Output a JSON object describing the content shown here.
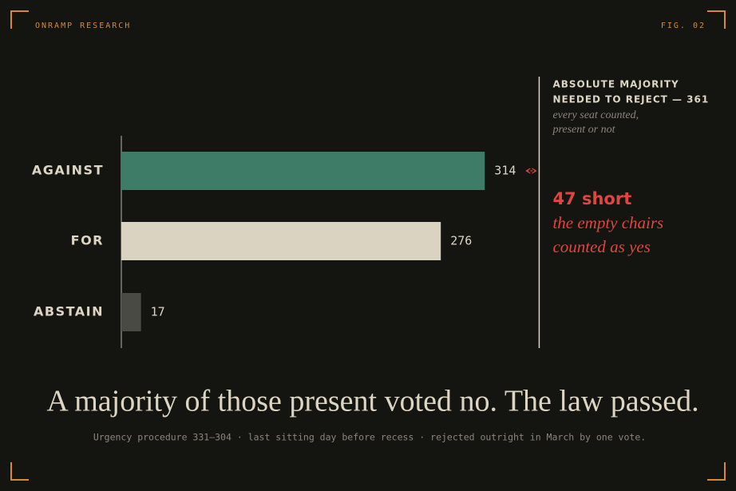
{
  "header": {
    "brand": "ONRAMP RESEARCH",
    "figure": "FIG. 02"
  },
  "chart_data": {
    "type": "bar",
    "orientation": "horizontal",
    "categories": [
      "AGAINST",
      "FOR",
      "ABSTAIN"
    ],
    "values": [
      314,
      276,
      17
    ],
    "colors": [
      "#3f7c67",
      "#dbd3c1",
      "#4a4a45"
    ],
    "xlim": [
      0,
      500
    ],
    "reference": {
      "value": 361,
      "label": [
        "ABSOLUTE MAJORITY",
        "NEEDED TO REJECT — 361"
      ],
      "note": [
        "every seat counted,",
        "present or not"
      ]
    },
    "annotation": {
      "title": "47 short",
      "text": [
        "the empty chairs",
        "counted as yes"
      ]
    },
    "title": "A majority of those present voted no. The law passed.",
    "subtitle": "Urgency procedure 331–304 · last sitting day before recess · rejected outright in March by one vote."
  }
}
